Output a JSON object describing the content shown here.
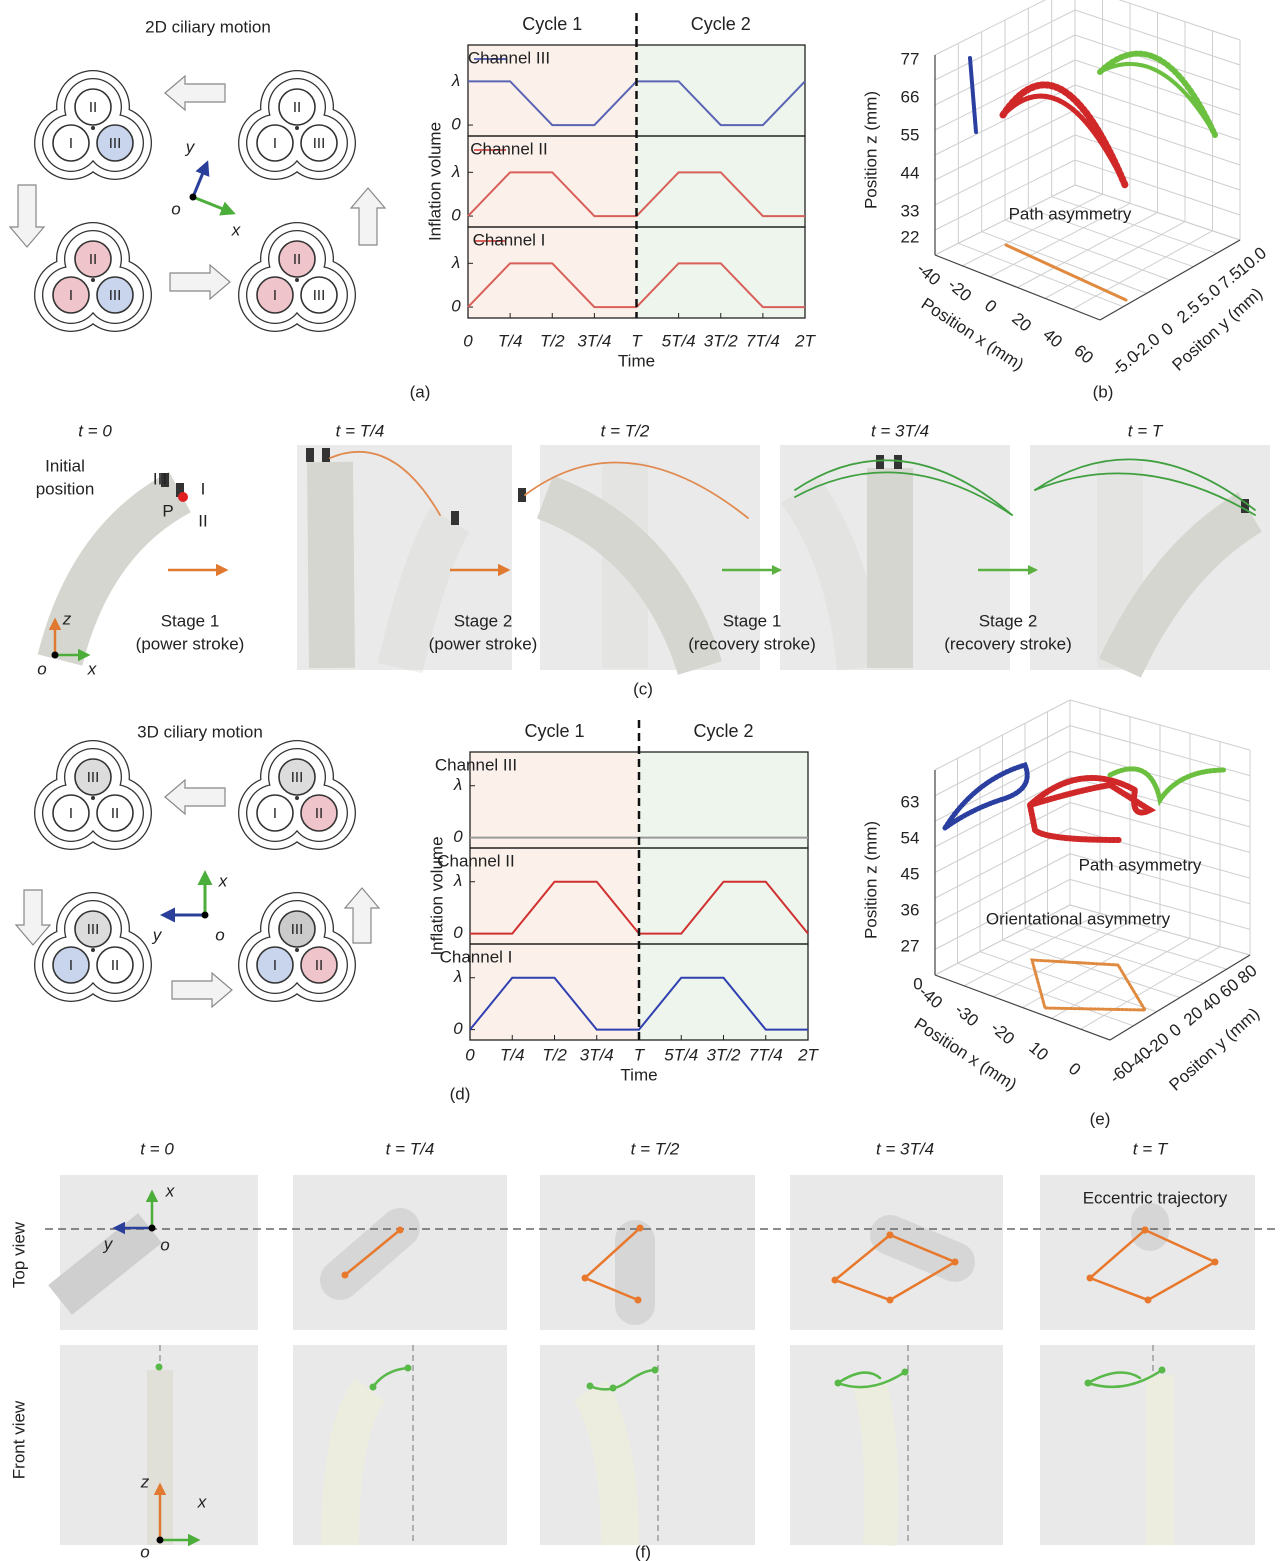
{
  "panel_a": {
    "title": "2D ciliary motion",
    "label": "(a)",
    "channel_names": [
      "I",
      "II",
      "III"
    ],
    "axis_labels": {
      "x": "x",
      "y": "y",
      "o": "o"
    },
    "chart_data": {
      "type": "line",
      "cycles": [
        "Cycle 1",
        "Cycle 2"
      ],
      "cycle_colors": [
        "#fbf1ea",
        "#eef5ec"
      ],
      "divider": 1,
      "ylabel": "Inflation volume",
      "xlabel": "Time",
      "legend_markers": true,
      "x": [
        0,
        0.25,
        0.5,
        0.75,
        1,
        1.25,
        1.5,
        1.75,
        2
      ],
      "xlim": [
        0,
        2
      ],
      "xticks": [
        0,
        {
          "value": 0.25,
          "label": "T/4"
        },
        {
          "value": 0.5,
          "label": "T/2"
        },
        {
          "value": 0.75,
          "label": "3T/4"
        },
        {
          "value": 1,
          "label": "T"
        },
        {
          "value": 1.25,
          "label": "5T/4"
        },
        {
          "value": 1.5,
          "label": "3T/2"
        },
        {
          "value": 1.75,
          "label": "7T/4"
        },
        {
          "value": 2,
          "label": "2T"
        }
      ],
      "ylim": [
        -0.25,
        1.83
      ],
      "yticks": [
        0,
        {
          "value": 1,
          "label": "λ"
        }
      ],
      "series": [
        {
          "name": "Channel III",
          "color": "#5a64b4",
          "values": [
            1,
            1,
            0,
            0,
            1,
            1,
            0,
            0,
            1
          ]
        },
        {
          "name": "Channel II",
          "color": "#d9605a",
          "values": [
            0,
            1,
            1,
            0,
            0,
            1,
            1,
            0,
            0
          ]
        },
        {
          "name": "Channel I",
          "color": "#d9605a",
          "values": [
            0,
            1,
            1,
            0,
            0,
            1,
            1,
            0,
            0
          ]
        }
      ]
    }
  },
  "panel_b": {
    "label": "(b)",
    "zlabel": "Position z (mm)",
    "xlabel": "Position x (mm)",
    "ylabel": "Positon y (mm)",
    "zticks": [
      "77",
      "66",
      "55",
      "44",
      "33",
      "22"
    ],
    "xticks": [
      "-40",
      "-20",
      "0",
      "20",
      "40",
      "60"
    ],
    "yticks": [
      "10.0",
      "7.5",
      "5.0",
      "2.5",
      "0",
      "-2.0",
      "-5.0"
    ],
    "annotation": "Path asymmetry"
  },
  "panel_c": {
    "label": "(c)",
    "time_labels": [
      "t = 0",
      "t = T/4",
      "t = T/2",
      "t = 3T/4",
      "t = T"
    ],
    "initial": [
      "Initial",
      "position"
    ],
    "channel_names": [
      "III",
      "I",
      "II"
    ],
    "point": "P",
    "axis_labels": {
      "z": "z",
      "x": "x",
      "o": "o"
    },
    "stages": [
      {
        "name": "Stage 1",
        "stroke": "(power stroke)",
        "color": "#e07a30"
      },
      {
        "name": "Stage 2",
        "stroke": "(power stroke)",
        "color": "#e07a30"
      },
      {
        "name": "Stage 1",
        "stroke": "(recovery stroke)",
        "color": "#5cb040"
      },
      {
        "name": "Stage 2",
        "stroke": "(recovery stroke)",
        "color": "#5cb040"
      }
    ]
  },
  "panel_d": {
    "title": "3D ciliary motion",
    "label": "(d)",
    "channel_names": [
      "I",
      "II",
      "III"
    ],
    "axis_labels": {
      "x": "x",
      "y": "y",
      "o": "o"
    },
    "chart_data": {
      "type": "line",
      "cycles": [
        "Cycle 1",
        "Cycle 2"
      ],
      "cycle_colors": [
        "#fbf1ea",
        "#eef5ec"
      ],
      "divider": 1,
      "ylabel": "Inflation volume",
      "xlabel": "Time",
      "legend_markers": false,
      "x": [
        0,
        0.25,
        0.5,
        0.75,
        1,
        1.25,
        1.5,
        1.75,
        2
      ],
      "xlim": [
        0,
        2
      ],
      "xticks": [
        0,
        {
          "value": 0.25,
          "label": "T/4"
        },
        {
          "value": 0.5,
          "label": "T/2"
        },
        {
          "value": 0.75,
          "label": "3T/4"
        },
        {
          "value": 1,
          "label": "T"
        },
        {
          "value": 1.25,
          "label": "5T/4"
        },
        {
          "value": 1.5,
          "label": "3T/2"
        },
        {
          "value": 1.75,
          "label": "7T/4"
        },
        {
          "value": 2,
          "label": "2T"
        }
      ],
      "ylim": [
        -0.2,
        1.65
      ],
      "yticks": [
        0,
        {
          "value": 1,
          "label": "λ"
        }
      ],
      "series": [
        {
          "name": "Channel III",
          "color": "#999999",
          "values": [
            0,
            0,
            0,
            0,
            0,
            0,
            0,
            0,
            0
          ]
        },
        {
          "name": "Channel II",
          "color": "#d03030",
          "values": [
            0,
            0,
            1,
            1,
            0,
            0,
            1,
            1,
            0
          ]
        },
        {
          "name": "Channel I",
          "color": "#3040b0",
          "values": [
            0,
            1,
            1,
            0,
            0,
            1,
            1,
            0,
            0
          ]
        }
      ]
    }
  },
  "panel_e": {
    "label": "(e)",
    "zlabel": "Position z (mm)",
    "xlabel": "Position x (mm)",
    "ylabel": "Positon y (mm)",
    "zticks": [
      "63",
      "54",
      "45",
      "36",
      "27",
      "0"
    ],
    "xticks": [
      "-40",
      "-30",
      "-20",
      "10",
      "0"
    ],
    "yticks": [
      "80",
      "60",
      "40",
      "20",
      "0",
      "-20",
      "-40",
      "-60"
    ],
    "annotations": [
      "Path asymmetry",
      "Orientational asymmetry"
    ]
  },
  "panel_f": {
    "label": "(f)",
    "time_labels": [
      "t = 0",
      "t = T/4",
      "t = T/2",
      "t = 3T/4",
      "t = T"
    ],
    "rows": [
      "Top view",
      "Front view"
    ],
    "annotation": "Eccentric trajectory",
    "top_axis_labels": {
      "x": "x",
      "y": "y",
      "o": "o"
    },
    "front_axis_labels": {
      "z": "z",
      "x": "x",
      "o": "o"
    }
  }
}
